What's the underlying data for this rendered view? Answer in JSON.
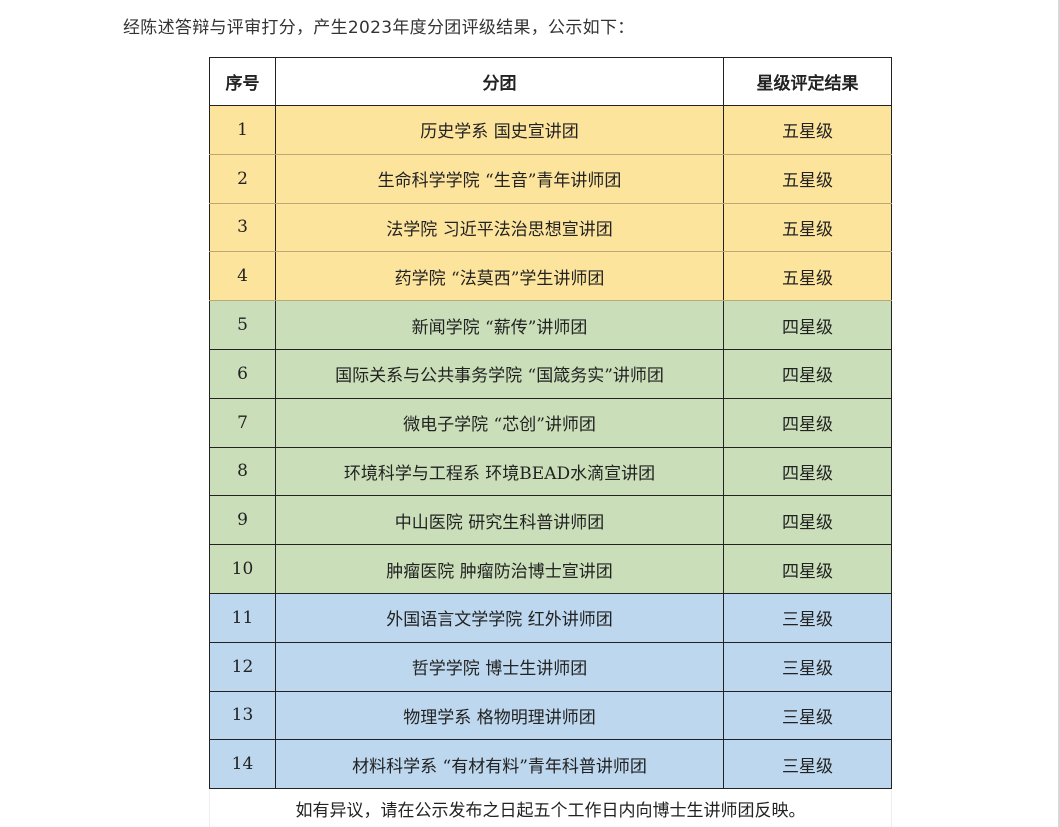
{
  "intro": "经陈述答辩与评审打分，产生2023年度分团评级结果，公示如下：",
  "table": {
    "headers": [
      "序号",
      "分团",
      "星级评定结果"
    ],
    "rows": [
      {
        "no": "1",
        "team": "历史学系  国史宣讲团",
        "rating": "五星级",
        "tier": "r5"
      },
      {
        "no": "2",
        "team": "生命科学学院  “生音”青年讲师团",
        "rating": "五星级",
        "tier": "r5"
      },
      {
        "no": "3",
        "team": "法学院  习近平法治思想宣讲团",
        "rating": "五星级",
        "tier": "r5"
      },
      {
        "no": "4",
        "team": "药学院  “法莫西”学生讲师团",
        "rating": "五星级",
        "tier": "r5"
      },
      {
        "no": "5",
        "team": "新闻学院  “薪传”讲师团",
        "rating": "四星级",
        "tier": "r4"
      },
      {
        "no": "6",
        "team": "国际关系与公共事务学院  “国箴务实”讲师团",
        "rating": "四星级",
        "tier": "r4"
      },
      {
        "no": "7",
        "team": "微电子学院  “芯创”讲师团",
        "rating": "四星级",
        "tier": "r4"
      },
      {
        "no": "8",
        "team": "环境科学与工程系  环境BEAD水滴宣讲团",
        "rating": "四星级",
        "tier": "r4"
      },
      {
        "no": "9",
        "team": "中山医院  研究生科普讲师团",
        "rating": "四星级",
        "tier": "r4"
      },
      {
        "no": "10",
        "team": "肿瘤医院  肿瘤防治博士宣讲团",
        "rating": "四星级",
        "tier": "r4"
      },
      {
        "no": "11",
        "team": "外国语言文学学院  红外讲师团",
        "rating": "三星级",
        "tier": "r3"
      },
      {
        "no": "12",
        "team": "哲学学院  博士生讲师团",
        "rating": "三星级",
        "tier": "r3"
      },
      {
        "no": "13",
        "team": "物理学系  格物明理讲师团",
        "rating": "三星级",
        "tier": "r3"
      },
      {
        "no": "14",
        "team": "材料科学系  “有材有料”青年科普讲师团",
        "rating": "三星级",
        "tier": "r3"
      }
    ],
    "note": "如有异议，请在公示发布之日起五个工作日内向博士生讲师团反映。"
  },
  "colors": {
    "five_star": "#fde49c",
    "four_star": "#cadfb9",
    "three_star": "#bdd7ee"
  }
}
